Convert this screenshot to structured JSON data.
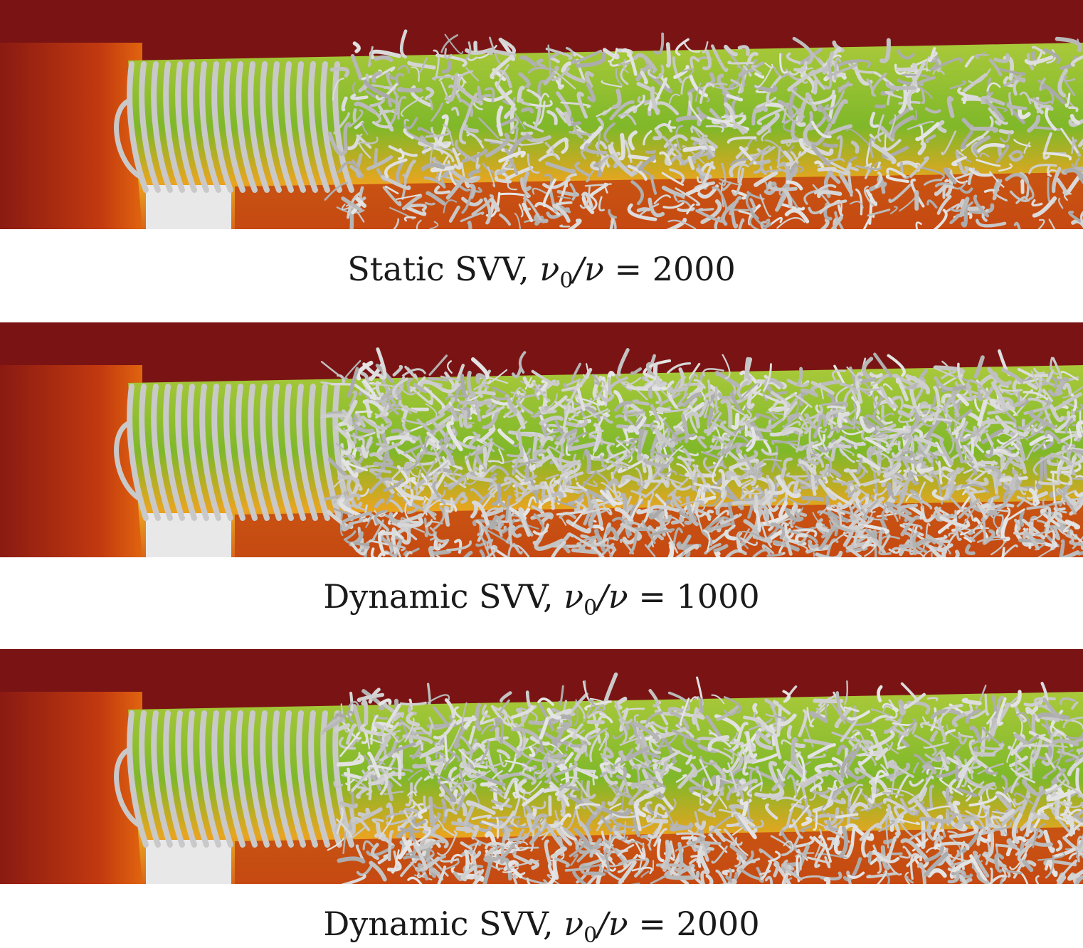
{
  "panels": [
    {
      "caption_prefix": "Static SVV, ",
      "caption_math": "ν",
      "caption_sub": "0",
      "caption_rest": "/ν = ",
      "caption_value": "2000"
    },
    {
      "caption_prefix": "Dynamic SVV, ",
      "caption_math": "ν",
      "caption_sub": "0",
      "caption_rest": "/ν = ",
      "caption_value": "1000"
    },
    {
      "caption_prefix": "Dynamic SVV, ",
      "caption_math": "ν",
      "caption_sub": "0",
      "caption_rest": "/ν = ",
      "caption_value": "2000"
    }
  ],
  "colors": {
    "background_field": "#7a1414",
    "jet_core": "#7fb82a",
    "jet_mid": "#c8d43a",
    "shear_layer": "#d9661a",
    "vortex_tubes": "#c9c9c9",
    "nozzle": "#e8e8e8"
  }
}
